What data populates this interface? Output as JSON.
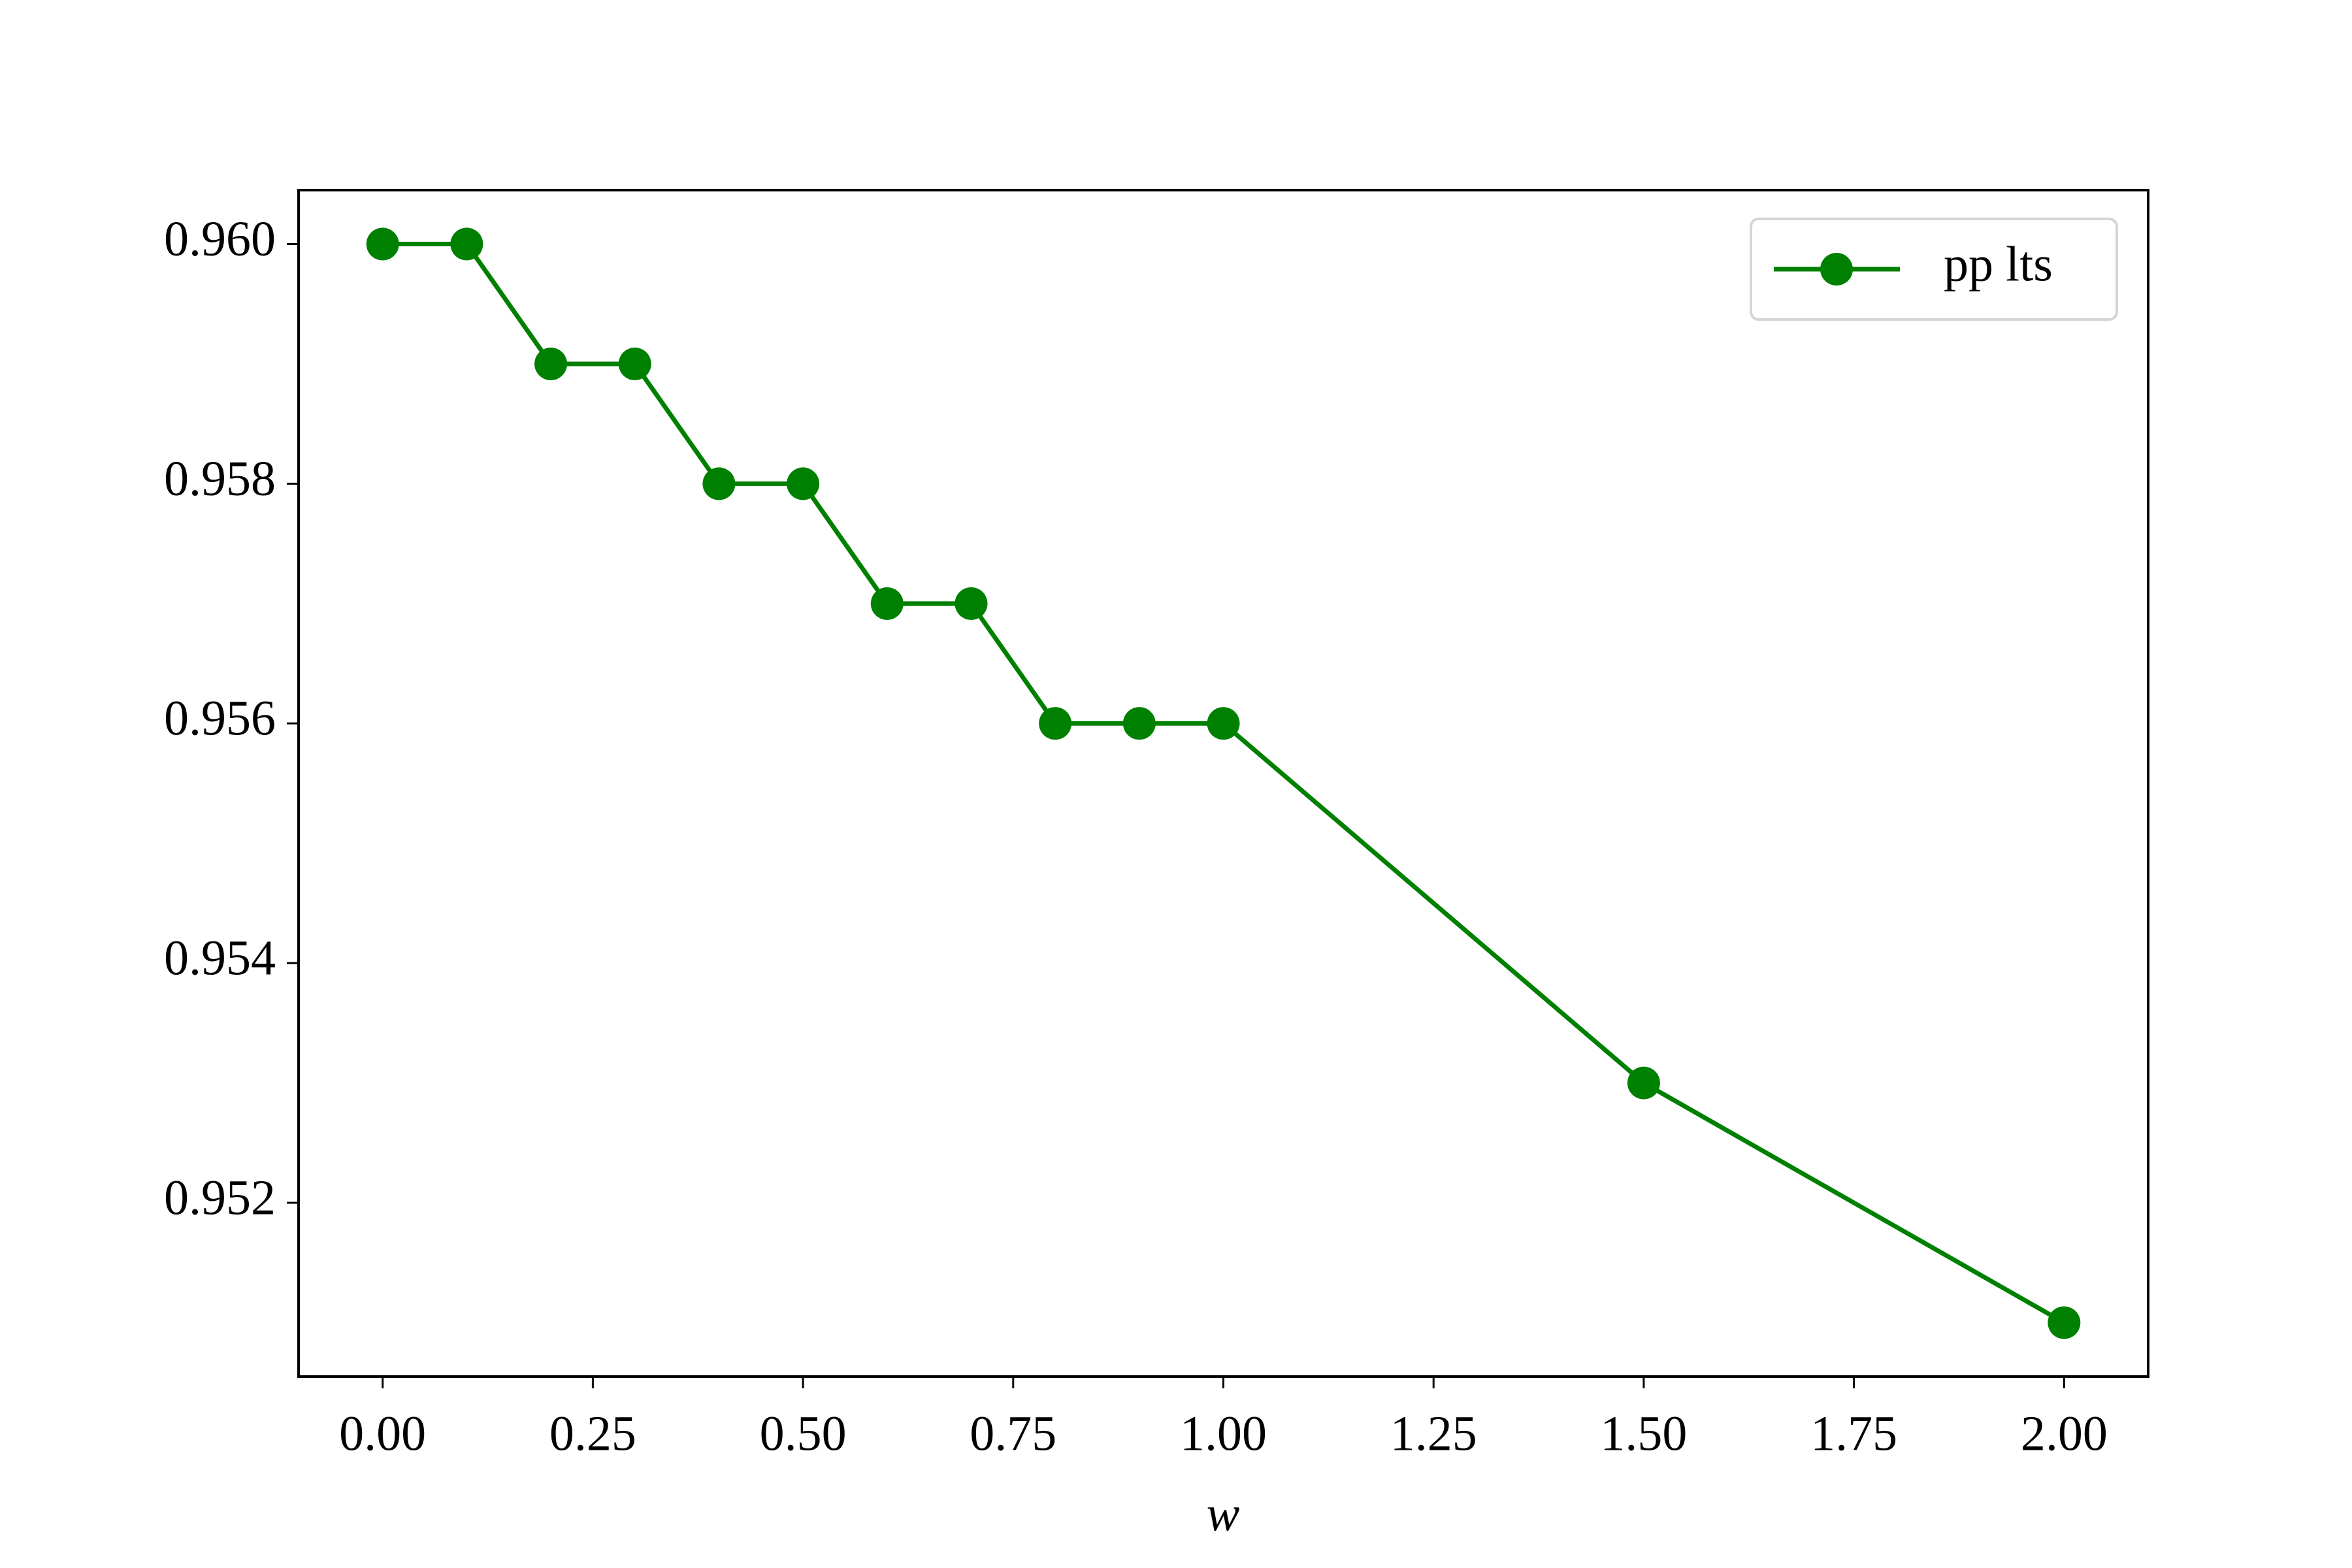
{
  "chart_data": {
    "type": "line",
    "xlabel": "w",
    "x": [
      0,
      0.1,
      0.2,
      0.3,
      0.4,
      0.5,
      0.6,
      0.7,
      0.8,
      0.9,
      1.0,
      1.5,
      2.0
    ],
    "series": [
      {
        "name": "pp lts",
        "color": "#008000",
        "values": [
          0.96,
          0.96,
          0.959,
          0.959,
          0.958,
          0.958,
          0.957,
          0.957,
          0.956,
          0.956,
          0.956,
          0.953,
          0.951
        ]
      }
    ],
    "xlim": [
      -0.1,
      2.1
    ],
    "xticks": [
      {
        "value": 0,
        "label": "0.00"
      },
      {
        "value": 0.25,
        "label": "0.25"
      },
      {
        "value": 0.5,
        "label": "0.50"
      },
      {
        "value": 0.75,
        "label": "0.75"
      },
      {
        "value": 1.0,
        "label": "1.00"
      },
      {
        "value": 1.25,
        "label": "1.25"
      },
      {
        "value": 1.5,
        "label": "1.50"
      },
      {
        "value": 1.75,
        "label": "1.75"
      },
      {
        "value": 2.0,
        "label": "2.00"
      }
    ],
    "ylim": [
      0.95055,
      0.96045
    ],
    "yticks": [
      0.952,
      0.954,
      0.956,
      0.958,
      {
        "value": 0.96,
        "label": "0.960"
      }
    ],
    "grid": false,
    "legend": "upper right"
  }
}
